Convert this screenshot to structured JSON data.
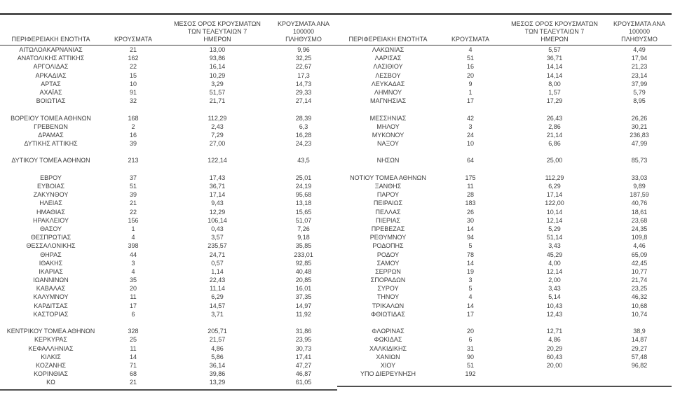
{
  "colors": {
    "text": "#3d3d3d",
    "top_rule": "#1f1f1f",
    "header_rule": "#3a3a3a",
    "bottom_rule": "#4f4f4f"
  },
  "table": {
    "headers": {
      "region": "ΠΕΡΙΦΕΡΕΙΑΚΗ ΕΝΟΤΗΤΑ",
      "cases": "ΚΡΟΥΣΜΑΤΑ",
      "avg7_line1": "ΜΕΣΟΣ ΟΡΟΣ ΚΡΟΥΣΜΑΤΩΝ",
      "avg7_line2": "ΤΩΝ ΤΕΛΕΥΤΑΙΩΝ 7",
      "avg7_line3": "ΗΜΕΡΩΝ",
      "per100k_line1": "ΚΡΟΥΣΜΑΤΑ ΑΝΑ 100000",
      "per100k_line2": "ΠΛΗΘΥΣΜΟ"
    },
    "left_rows": [
      {
        "region": "ΑΙΤΩΛΟΑΚΑΡΝΑΝΙΑΣ",
        "cases": "21",
        "avg7": "13,00",
        "per100k": "9,96"
      },
      {
        "region": "ΑΝΑΤΟΛΙΚΗΣ ΑΤΤΙΚΗΣ",
        "cases": "162",
        "avg7": "93,86",
        "per100k": "32,25"
      },
      {
        "region": "ΑΡΓΟΛΙΔΑΣ",
        "cases": "22",
        "avg7": "16,14",
        "per100k": "22,67"
      },
      {
        "region": "ΑΡΚΑΔΙΑΣ",
        "cases": "15",
        "avg7": "10,29",
        "per100k": "17,3"
      },
      {
        "region": "ΑΡΤΑΣ",
        "cases": "10",
        "avg7": "3,29",
        "per100k": "14,73"
      },
      {
        "region": "ΑΧΑΪΑΣ",
        "cases": "91",
        "avg7": "51,57",
        "per100k": "29,33"
      },
      {
        "region": "ΒΟΙΩΤΙΑΣ",
        "cases": "32",
        "avg7": "21,71",
        "per100k": "27,14"
      },
      {
        "region": "",
        "cases": "",
        "avg7": "",
        "per100k": ""
      },
      {
        "region": "ΒΟΡΕΙΟΥ ΤΟΜΕΑ ΑΘΗΝΩΝ",
        "cases": "168",
        "avg7": "112,29",
        "per100k": "28,39"
      },
      {
        "region": "ΓΡΕΒΕΝΩΝ",
        "cases": "2",
        "avg7": "2,43",
        "per100k": "6,3"
      },
      {
        "region": "ΔΡΑΜΑΣ",
        "cases": "16",
        "avg7": "7,29",
        "per100k": "16,28"
      },
      {
        "region": "ΔΥΤΙΚΗΣ ΑΤΤΙΚΗΣ",
        "cases": "39",
        "avg7": "27,00",
        "per100k": "24,23"
      },
      {
        "region": "",
        "cases": "",
        "avg7": "",
        "per100k": ""
      },
      {
        "region": "ΔΥΤΙΚΟΥ ΤΟΜΕΑ ΑΘΗΝΩΝ",
        "cases": "213",
        "avg7": "122,14",
        "per100k": "43,5"
      },
      {
        "region": "",
        "cases": "",
        "avg7": "",
        "per100k": ""
      },
      {
        "region": "ΕΒΡΟΥ",
        "cases": "37",
        "avg7": "17,43",
        "per100k": "25,01"
      },
      {
        "region": "ΕΥΒΟΙΑΣ",
        "cases": "51",
        "avg7": "36,71",
        "per100k": "24,19"
      },
      {
        "region": "ΖΑΚΥΝΘΟΥ",
        "cases": "39",
        "avg7": "17,14",
        "per100k": "95,68"
      },
      {
        "region": "ΗΛΕΙΑΣ",
        "cases": "21",
        "avg7": "9,43",
        "per100k": "13,18"
      },
      {
        "region": "ΗΜΑΘΙΑΣ",
        "cases": "22",
        "avg7": "12,29",
        "per100k": "15,65"
      },
      {
        "region": "ΗΡΑΚΛΕΙΟΥ",
        "cases": "156",
        "avg7": "106,14",
        "per100k": "51,07"
      },
      {
        "region": "ΘΑΣΟΥ",
        "cases": "1",
        "avg7": "0,43",
        "per100k": "7,26"
      },
      {
        "region": "ΘΕΣΠΡΩΤΙΑΣ",
        "cases": "4",
        "avg7": "3,57",
        "per100k": "9,18"
      },
      {
        "region": "ΘΕΣΣΑΛΟΝΙΚΗΣ",
        "cases": "398",
        "avg7": "235,57",
        "per100k": "35,85"
      },
      {
        "region": "ΘΗΡΑΣ",
        "cases": "44",
        "avg7": "24,71",
        "per100k": "233,01"
      },
      {
        "region": "ΙΘΑΚΗΣ",
        "cases": "3",
        "avg7": "0,57",
        "per100k": "92,85"
      },
      {
        "region": "ΙΚΑΡΙΑΣ",
        "cases": "4",
        "avg7": "1,14",
        "per100k": "40,48"
      },
      {
        "region": "ΙΩΑΝΝΙΝΩΝ",
        "cases": "35",
        "avg7": "22,43",
        "per100k": "20,85"
      },
      {
        "region": "ΚΑΒΑΛΑΣ",
        "cases": "20",
        "avg7": "11,14",
        "per100k": "16,01"
      },
      {
        "region": "ΚΑΛΥΜΝΟΥ",
        "cases": "11",
        "avg7": "6,29",
        "per100k": "37,35"
      },
      {
        "region": "ΚΑΡΔΙΤΣΑΣ",
        "cases": "17",
        "avg7": "14,57",
        "per100k": "14,97"
      },
      {
        "region": "ΚΑΣΤΟΡΙΑΣ",
        "cases": "6",
        "avg7": "3,71",
        "per100k": "11,92"
      },
      {
        "region": "",
        "cases": "",
        "avg7": "",
        "per100k": ""
      },
      {
        "region": "ΚΕΝΤΡΙΚΟΥ ΤΟΜΕΑ ΑΘΗΝΩΝ",
        "cases": "328",
        "avg7": "205,71",
        "per100k": "31,86"
      },
      {
        "region": "ΚΕΡΚΥΡΑΣ",
        "cases": "25",
        "avg7": "21,57",
        "per100k": "23,95"
      },
      {
        "region": "ΚΕΦΑΛΛΗΝΙΑΣ",
        "cases": "11",
        "avg7": "4,86",
        "per100k": "30,73"
      },
      {
        "region": "ΚΙΛΚΙΣ",
        "cases": "14",
        "avg7": "5,86",
        "per100k": "17,41"
      },
      {
        "region": "ΚΟΖΑΝΗΣ",
        "cases": "71",
        "avg7": "36,14",
        "per100k": "47,27"
      },
      {
        "region": "ΚΟΡΙΝΘΙΑΣ",
        "cases": "68",
        "avg7": "39,86",
        "per100k": "46,87"
      },
      {
        "region": "ΚΩ",
        "cases": "21",
        "avg7": "13,29",
        "per100k": "61,05"
      }
    ],
    "right_rows": [
      {
        "region": "ΛΑΚΩΝΙΑΣ",
        "cases": "4",
        "avg7": "5,57",
        "per100k": "4,49"
      },
      {
        "region": "ΛΑΡΙΣΑΣ",
        "cases": "51",
        "avg7": "36,71",
        "per100k": "17,94"
      },
      {
        "region": "ΛΑΣΙΘΙΟΥ",
        "cases": "16",
        "avg7": "14,14",
        "per100k": "21,23"
      },
      {
        "region": "ΛΕΣΒΟΥ",
        "cases": "20",
        "avg7": "14,14",
        "per100k": "23,14"
      },
      {
        "region": "ΛΕΥΚΑΔΑΣ",
        "cases": "9",
        "avg7": "8,00",
        "per100k": "37,99"
      },
      {
        "region": "ΛΗΜΝΟΥ",
        "cases": "1",
        "avg7": "1,57",
        "per100k": "5,79"
      },
      {
        "region": "ΜΑΓΝΗΣΙΑΣ",
        "cases": "17",
        "avg7": "17,29",
        "per100k": "8,95"
      },
      {
        "region": "",
        "cases": "",
        "avg7": "",
        "per100k": ""
      },
      {
        "region": "ΜΕΣΣΗΝΙΑΣ",
        "cases": "42",
        "avg7": "26,43",
        "per100k": "26,26"
      },
      {
        "region": "ΜΗΛΟΥ",
        "cases": "3",
        "avg7": "2,86",
        "per100k": "30,21"
      },
      {
        "region": "ΜΥΚΟΝΟΥ",
        "cases": "24",
        "avg7": "21,14",
        "per100k": "236,83"
      },
      {
        "region": "ΝΑΞΟΥ",
        "cases": "10",
        "avg7": "6,86",
        "per100k": "47,99"
      },
      {
        "region": "",
        "cases": "",
        "avg7": "",
        "per100k": ""
      },
      {
        "region": "ΝΗΣΩΝ",
        "cases": "64",
        "avg7": "25,00",
        "per100k": "85,73"
      },
      {
        "region": "",
        "cases": "",
        "avg7": "",
        "per100k": ""
      },
      {
        "region": "ΝΟΤΙΟΥ ΤΟΜΕΑ ΑΘΗΝΩΝ",
        "cases": "175",
        "avg7": "112,29",
        "per100k": "33,03"
      },
      {
        "region": "ΞΑΝΘΗΣ",
        "cases": "11",
        "avg7": "6,29",
        "per100k": "9,89"
      },
      {
        "region": "ΠΑΡΟΥ",
        "cases": "28",
        "avg7": "17,14",
        "per100k": "187,59"
      },
      {
        "region": "ΠΕΙΡΑΙΩΣ",
        "cases": "183",
        "avg7": "122,00",
        "per100k": "40,76"
      },
      {
        "region": "ΠΕΛΛΑΣ",
        "cases": "26",
        "avg7": "10,14",
        "per100k": "18,61"
      },
      {
        "region": "ΠΙΕΡΙΑΣ",
        "cases": "30",
        "avg7": "12,14",
        "per100k": "23,68"
      },
      {
        "region": "ΠΡΕΒΕΖΑΣ",
        "cases": "14",
        "avg7": "5,29",
        "per100k": "24,35"
      },
      {
        "region": "ΡΕΘΥΜΝΟΥ",
        "cases": "94",
        "avg7": "51,14",
        "per100k": "109,8"
      },
      {
        "region": "ΡΟΔΟΠΗΣ",
        "cases": "5",
        "avg7": "3,43",
        "per100k": "4,46"
      },
      {
        "region": "ΡΟΔΟΥ",
        "cases": "78",
        "avg7": "45,29",
        "per100k": "65,09"
      },
      {
        "region": "ΣΑΜΟΥ",
        "cases": "14",
        "avg7": "4,00",
        "per100k": "42,45"
      },
      {
        "region": "ΣΕΡΡΩΝ",
        "cases": "19",
        "avg7": "12,14",
        "per100k": "10,77"
      },
      {
        "region": "ΣΠΟΡΑΔΩΝ",
        "cases": "3",
        "avg7": "2,00",
        "per100k": "21,74"
      },
      {
        "region": "ΣΥΡΟΥ",
        "cases": "5",
        "avg7": "3,43",
        "per100k": "23,25"
      },
      {
        "region": "ΤΗΝΟΥ",
        "cases": "4",
        "avg7": "5,14",
        "per100k": "46,32"
      },
      {
        "region": "ΤΡΙΚΑΛΩΝ",
        "cases": "14",
        "avg7": "10,43",
        "per100k": "10,68"
      },
      {
        "region": "ΦΘΙΩΤΙΔΑΣ",
        "cases": "17",
        "avg7": "12,43",
        "per100k": "10,74"
      },
      {
        "region": "",
        "cases": "",
        "avg7": "",
        "per100k": ""
      },
      {
        "region": "ΦΛΩΡΙΝΑΣ",
        "cases": "20",
        "avg7": "12,71",
        "per100k": "38,9"
      },
      {
        "region": "ΦΩΚΙΔΑΣ",
        "cases": "6",
        "avg7": "4,86",
        "per100k": "14,87"
      },
      {
        "region": "ΧΑΛΚΙΔΙΚΗΣ",
        "cases": "31",
        "avg7": "20,29",
        "per100k": "29,27"
      },
      {
        "region": "ΧΑΝΙΩΝ",
        "cases": "90",
        "avg7": "60,43",
        "per100k": "57,48"
      },
      {
        "region": "ΧΙΟΥ",
        "cases": "51",
        "avg7": "20,00",
        "per100k": "96,82"
      },
      {
        "region": "ΥΠΟ ΔΙΕΡΕΥΝΗΣΗ",
        "cases": "192",
        "avg7": "",
        "per100k": ""
      }
    ]
  }
}
